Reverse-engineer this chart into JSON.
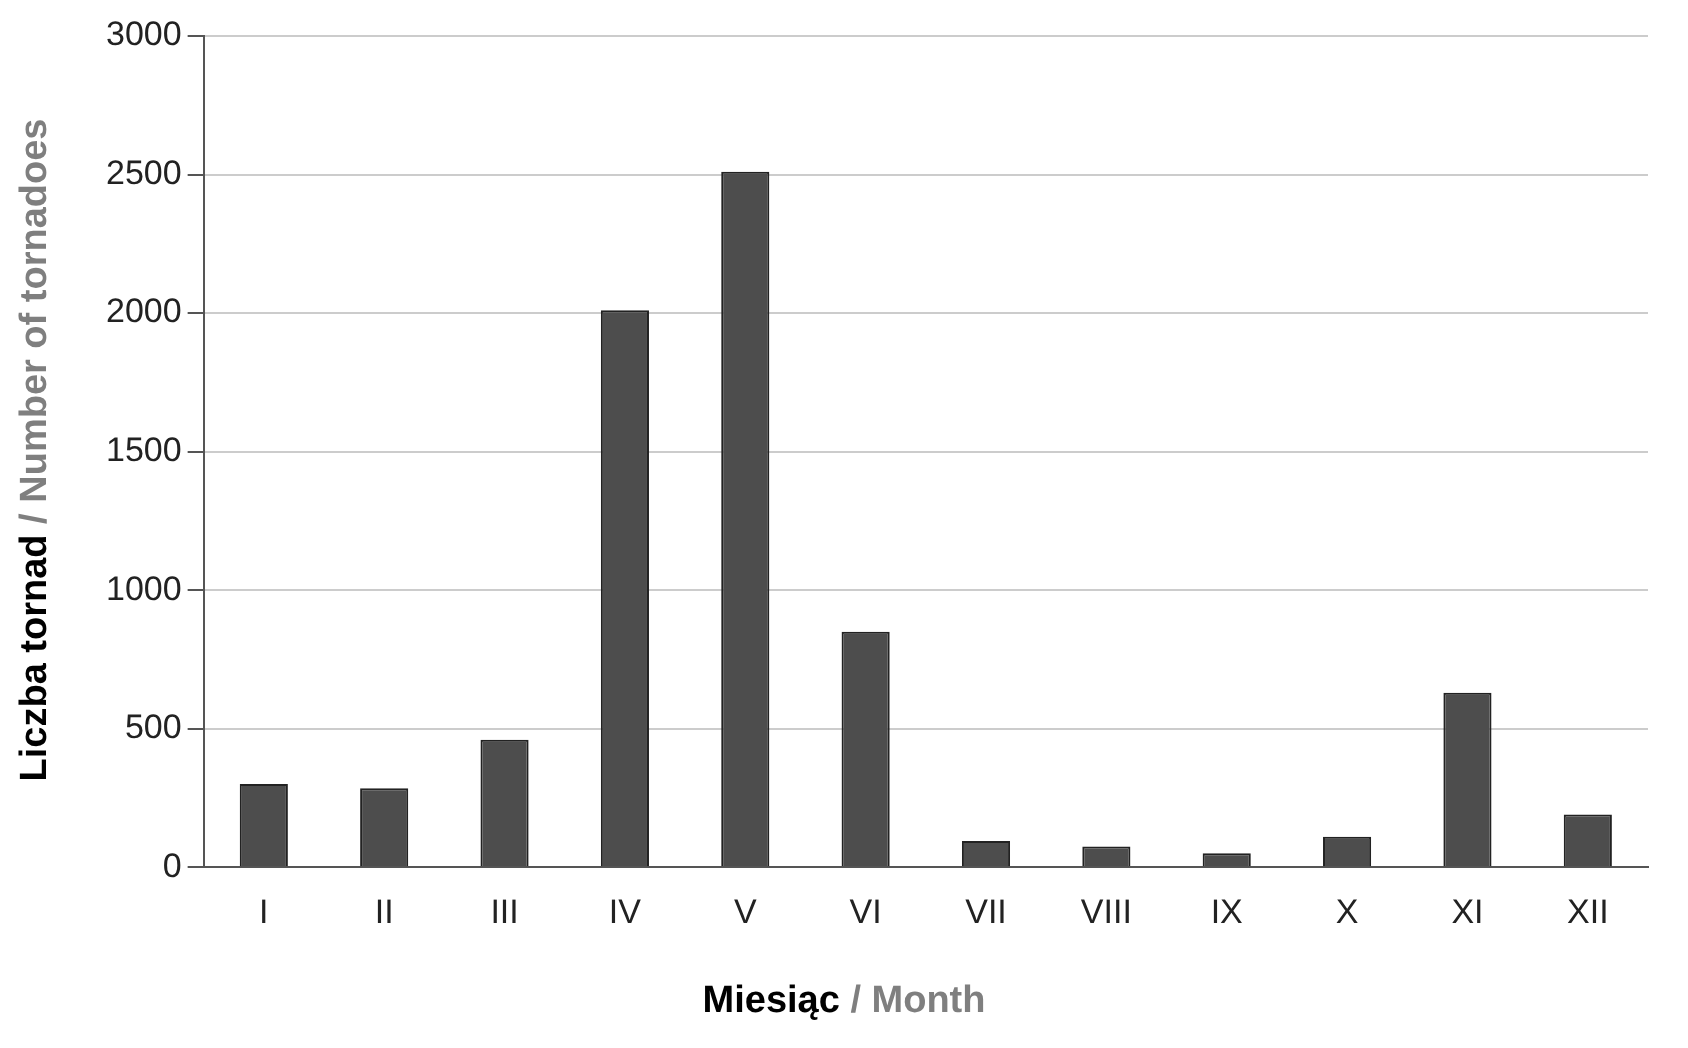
{
  "chart_data": {
    "type": "bar",
    "xlabel": "Miesiąc / Month",
    "ylabel": "Liczba tornad / Number of tornadoes",
    "categories": [
      "I",
      "II",
      "III",
      "IV",
      "V",
      "VI",
      "VII",
      "VIII",
      "IX",
      "X",
      "XI",
      "XII"
    ],
    "values": [
      300,
      285,
      460,
      2010,
      2510,
      850,
      95,
      75,
      50,
      110,
      630,
      190
    ],
    "color": "#4d4d4d",
    "ylim": [
      0,
      3000
    ],
    "yticks": [
      0,
      500,
      1000,
      1500,
      2000,
      2500,
      3000
    ],
    "grid": "y",
    "legend": false
  }
}
